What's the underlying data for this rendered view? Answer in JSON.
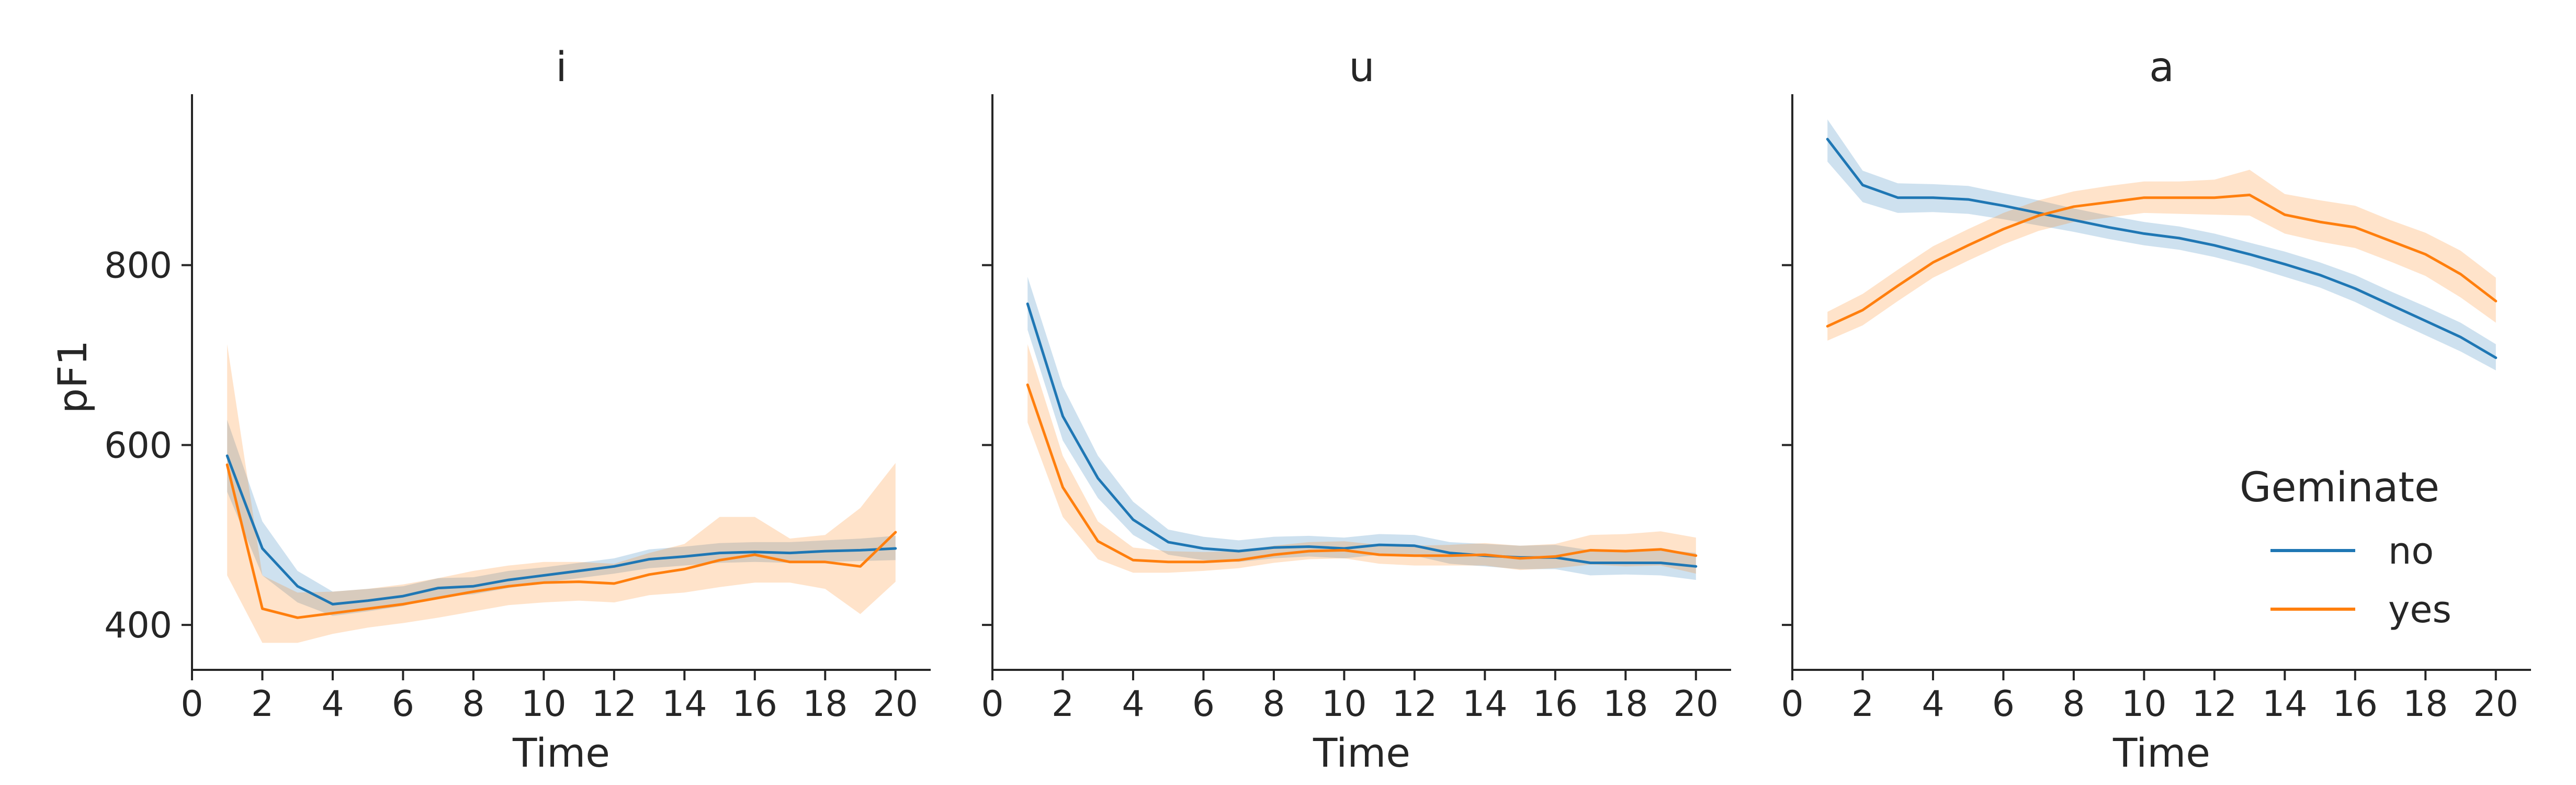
{
  "chart_data": {
    "type": "line",
    "ylabel": "pF1",
    "xlabel": "Time",
    "xlim": [
      0,
      21
    ],
    "ylim": [
      350,
      990
    ],
    "xticks": [
      0,
      2,
      4,
      6,
      8,
      10,
      12,
      14,
      16,
      18,
      20
    ],
    "yticks": [
      400,
      600,
      800
    ],
    "legend": {
      "title": "Geminate",
      "position": "bottom-right of last panel",
      "entries": [
        {
          "label": "no",
          "color": "#1f77b4"
        },
        {
          "label": "yes",
          "color": "#ff7f0e"
        }
      ]
    },
    "colors": {
      "no": "#1f77b4",
      "yes": "#ff7f0e"
    },
    "panels": [
      {
        "title": "i",
        "series": [
          {
            "name": "no",
            "x": [
              1,
              2,
              3,
              4,
              5,
              6,
              7,
              8,
              9,
              10,
              11,
              12,
              13,
              14,
              15,
              16,
              17,
              18,
              19,
              20
            ],
            "y": [
              588,
              485,
              443,
              423,
              427,
              432,
              441,
              443,
              450,
              455,
              460,
              465,
              473,
              476,
              480,
              481,
              480,
              482,
              483,
              485
            ],
            "lower": [
              548,
              455,
              425,
              410,
              415,
              421,
              431,
              434,
              441,
              447,
              452,
              457,
              463,
              466,
              469,
              470,
              469,
              470,
              471,
              472
            ],
            "upper": [
              628,
              515,
              460,
              437,
              440,
              443,
              452,
              453,
              460,
              464,
              469,
              474,
              484,
              487,
              491,
              492,
              492,
              494,
              496,
              499
            ]
          },
          {
            "name": "yes",
            "x": [
              1,
              2,
              3,
              4,
              5,
              6,
              7,
              8,
              9,
              10,
              11,
              12,
              13,
              14,
              15,
              16,
              17,
              18,
              19,
              20
            ],
            "y": [
              578,
              418,
              408,
              413,
              418,
              423,
              430,
              437,
              443,
              447,
              448,
              446,
              456,
              462,
              472,
              478,
              470,
              470,
              465,
              503
            ],
            "lower": [
              455,
              380,
              380,
              390,
              397,
              402,
              408,
              415,
              422,
              425,
              427,
              425,
              433,
              436,
              442,
              447,
              447,
              440,
              412,
              448
            ],
            "upper": [
              712,
              455,
              436,
              437,
              440,
              445,
              452,
              460,
              466,
              470,
              470,
              468,
              480,
              490,
              520,
              520,
              496,
              500,
              530,
              580
            ]
          }
        ]
      },
      {
        "title": "u",
        "series": [
          {
            "name": "no",
            "x": [
              1,
              2,
              3,
              4,
              5,
              6,
              7,
              8,
              9,
              10,
              11,
              12,
              13,
              14,
              15,
              16,
              17,
              18,
              19,
              20
            ],
            "y": [
              757,
              632,
              563,
              517,
              492,
              485,
              482,
              486,
              487,
              485,
              489,
              488,
              480,
              477,
              475,
              475,
              469,
              469,
              469,
              465
            ],
            "lower": [
              728,
              605,
              541,
              500,
              478,
              472,
              470,
              474,
              476,
              474,
              478,
              477,
              468,
              465,
              462,
              462,
              455,
              456,
              455,
              450
            ],
            "upper": [
              787,
              665,
              588,
              537,
              506,
              498,
              494,
              498,
              499,
              497,
              501,
              500,
              492,
              490,
              488,
              489,
              483,
              483,
              484,
              480
            ]
          },
          {
            "name": "yes",
            "x": [
              1,
              2,
              3,
              4,
              5,
              6,
              7,
              8,
              9,
              10,
              11,
              12,
              13,
              14,
              15,
              16,
              17,
              18,
              19,
              20
            ],
            "y": [
              667,
              553,
              493,
              472,
              470,
              470,
              472,
              478,
              482,
              483,
              478,
              477,
              477,
              478,
              474,
              476,
              483,
              482,
              484,
              477
            ],
            "lower": [
              625,
              520,
              473,
              458,
              458,
              460,
              463,
              469,
              473,
              474,
              468,
              466,
              466,
              466,
              461,
              463,
              467,
              465,
              466,
              457
            ],
            "upper": [
              712,
              588,
              515,
              486,
              482,
              481,
              482,
              488,
              492,
              493,
              489,
              488,
              489,
              491,
              488,
              490,
              500,
              501,
              504,
              497
            ]
          }
        ]
      },
      {
        "title": "a",
        "series": [
          {
            "name": "no",
            "x": [
              1,
              2,
              3,
              4,
              5,
              6,
              7,
              8,
              9,
              10,
              11,
              12,
              13,
              14,
              15,
              16,
              17,
              18,
              19,
              20
            ],
            "y": [
              940,
              889,
              875,
              875,
              873,
              866,
              858,
              850,
              842,
              835,
              830,
              822,
              812,
              801,
              789,
              774,
              756,
              738,
              720,
              697
            ],
            "lower": [
              915,
              870,
              858,
              859,
              857,
              851,
              844,
              837,
              829,
              822,
              817,
              809,
              799,
              787,
              775,
              759,
              740,
              722,
              704,
              683
            ],
            "upper": [
              962,
              905,
              891,
              890,
              888,
              880,
              872,
              863,
              855,
              848,
              843,
              835,
              825,
              815,
              803,
              789,
              771,
              754,
              736,
              712
            ]
          },
          {
            "name": "yes",
            "x": [
              1,
              2,
              3,
              4,
              5,
              6,
              7,
              8,
              9,
              10,
              11,
              12,
              13,
              14,
              15,
              16,
              17,
              18,
              19,
              20
            ],
            "y": [
              732,
              750,
              777,
              803,
              822,
              840,
              855,
              865,
              870,
              875,
              875,
              875,
              878,
              856,
              848,
              842,
              827,
              812,
              790,
              760
            ],
            "lower": [
              716,
              733,
              760,
              786,
              805,
              823,
              838,
              848,
              853,
              858,
              857,
              856,
              855,
              835,
              826,
              819,
              804,
              788,
              764,
              736
            ],
            "upper": [
              748,
              768,
              795,
              821,
              840,
              858,
              872,
              882,
              888,
              893,
              893,
              895,
              906,
              879,
              872,
              866,
              850,
              836,
              816,
              786
            ]
          }
        ]
      }
    ]
  }
}
